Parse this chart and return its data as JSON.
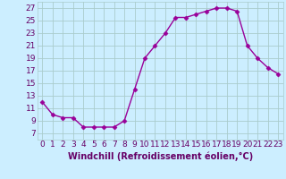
{
  "x": [
    0,
    1,
    2,
    3,
    4,
    5,
    6,
    7,
    8,
    9,
    10,
    11,
    12,
    13,
    14,
    15,
    16,
    17,
    18,
    19,
    20,
    21,
    22,
    23
  ],
  "y": [
    12,
    10,
    9.5,
    9.5,
    8,
    8,
    8,
    8,
    9,
    14,
    19,
    21,
    23,
    25.5,
    25.5,
    26,
    26.5,
    27,
    27,
    26.5,
    21,
    19,
    17.5,
    16.5
  ],
  "line_color": "#990099",
  "marker": "D",
  "marker_size": 2.5,
  "bg_color": "#cceeff",
  "grid_color": "#aacccc",
  "xlabel": "Windchill (Refroidissement éolien,°C)",
  "xlabel_color": "#660066",
  "xlabel_fontsize": 7,
  "tick_color": "#660066",
  "tick_fontsize": 6.5,
  "yticks": [
    7,
    9,
    11,
    13,
    15,
    17,
    19,
    21,
    23,
    25,
    27
  ],
  "ylim": [
    6.0,
    28.0
  ],
  "xlim": [
    -0.5,
    23.5
  ]
}
